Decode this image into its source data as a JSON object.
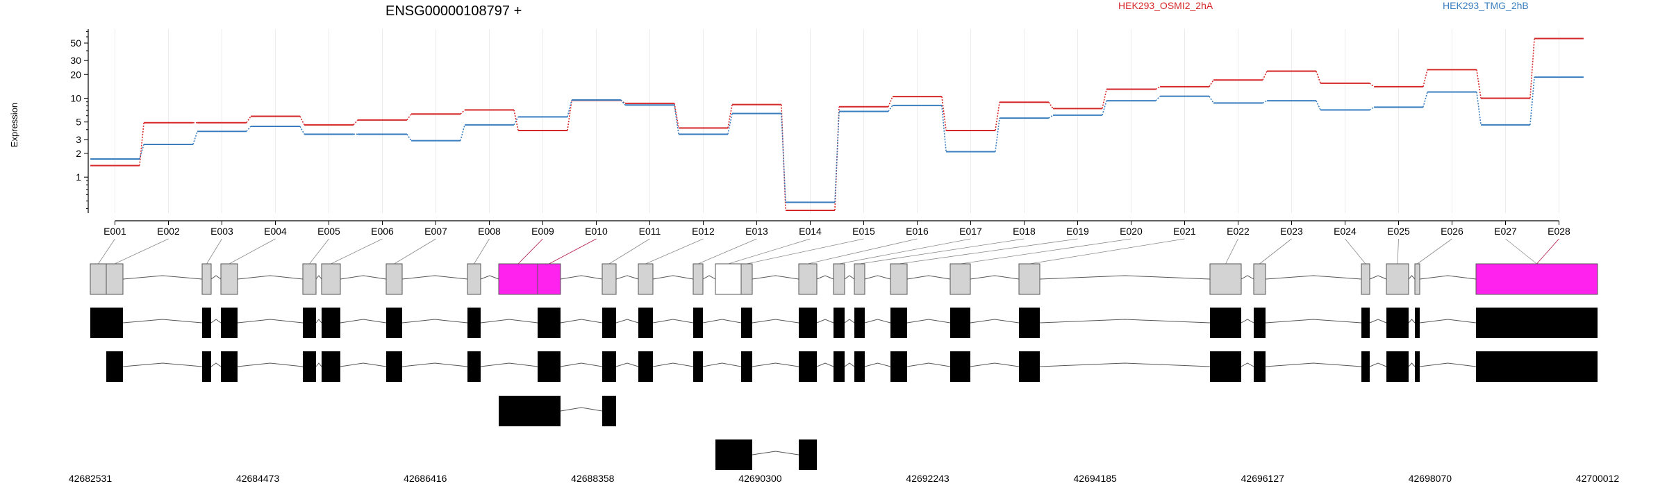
{
  "chart_data": {
    "type": "line",
    "title": "ENSG00000108797 +",
    "ylabel": "Expression",
    "yscale": "log",
    "yticks": [
      1,
      2,
      3,
      5,
      10,
      20,
      30,
      50
    ],
    "ylim": [
      0.35,
      75
    ],
    "grid": "vertical",
    "legend_position": "top",
    "categories": [
      "E001",
      "E002",
      "E003",
      "E004",
      "E005",
      "E006",
      "E007",
      "E008",
      "E009",
      "E010",
      "E011",
      "E012",
      "E013",
      "E014",
      "E015",
      "E016",
      "E017",
      "E018",
      "E019",
      "E020",
      "E021",
      "E022",
      "E023",
      "E024",
      "E025",
      "E026",
      "E027",
      "E028"
    ],
    "series": [
      {
        "name": "HEK293_OSMI2_2hA",
        "color": "#d62728",
        "values": [
          1.4,
          4.9,
          4.9,
          5.9,
          4.6,
          5.3,
          6.3,
          7.1,
          3.9,
          9.4,
          8.6,
          4.2,
          8.3,
          0.38,
          7.8,
          10.5,
          3.9,
          8.9,
          7.4,
          13,
          14,
          17,
          22,
          15.5,
          14,
          23,
          10,
          57
        ]
      },
      {
        "name": "HEK293_TMG_2hB",
        "color": "#3a7ebf",
        "values": [
          1.7,
          2.6,
          3.8,
          4.4,
          3.5,
          3.5,
          2.9,
          4.6,
          5.8,
          9.5,
          8.2,
          3.5,
          6.4,
          0.48,
          6.8,
          8.1,
          2.1,
          5.6,
          6.1,
          9.3,
          10.6,
          8.7,
          9.3,
          7.1,
          7.7,
          12,
          4.6,
          18.5
        ]
      }
    ],
    "genomic_coordinates": [
      "42682531",
      "42684473",
      "42686416",
      "42688358",
      "42690300",
      "42692243",
      "42694185",
      "42696127",
      "42698070",
      "42700012"
    ],
    "exon_track": {
      "colors": {
        "default": "#d3d3d3",
        "highlight": "#ff22ee",
        "empty": "#ffffff"
      },
      "exons": [
        {
          "exon": "E001",
          "fill": "default"
        },
        {
          "exon": "E002",
          "fill": "default"
        },
        {
          "exon": "E003",
          "fill": "default"
        },
        {
          "exon": "E004",
          "fill": "default"
        },
        {
          "exon": "E005",
          "fill": "default"
        },
        {
          "exon": "E006",
          "fill": "default"
        },
        {
          "exon": "E007",
          "fill": "default"
        },
        {
          "exon": "E008",
          "fill": "default"
        },
        {
          "exon": "E009",
          "fill": "highlight"
        },
        {
          "exon": "E010",
          "fill": "highlight"
        },
        {
          "exon": "E011",
          "fill": "default"
        },
        {
          "exon": "E012",
          "fill": "default"
        },
        {
          "exon": "E013",
          "fill": "default"
        },
        {
          "exon": "E014",
          "fill": "empty"
        },
        {
          "exon": "E015",
          "fill": "default"
        },
        {
          "exon": "E016",
          "fill": "default"
        },
        {
          "exon": "E017",
          "fill": "default"
        },
        {
          "exon": "E018",
          "fill": "default"
        },
        {
          "exon": "E019",
          "fill": "default"
        },
        {
          "exon": "E020",
          "fill": "default"
        },
        {
          "exon": "E021",
          "fill": "default"
        },
        {
          "exon": "E022",
          "fill": "default"
        },
        {
          "exon": "E023",
          "fill": "default"
        },
        {
          "exon": "E024",
          "fill": "default"
        },
        {
          "exon": "E025",
          "fill": "default"
        },
        {
          "exon": "E026",
          "fill": "default"
        },
        {
          "exon": "E027",
          "fill": "default"
        },
        {
          "exon": "E028",
          "fill": "highlight"
        }
      ]
    },
    "transcripts": [
      {
        "color": "#000000"
      },
      {
        "color": "#000000"
      },
      {
        "color": "#000000"
      },
      {
        "color": "#000000"
      }
    ]
  }
}
